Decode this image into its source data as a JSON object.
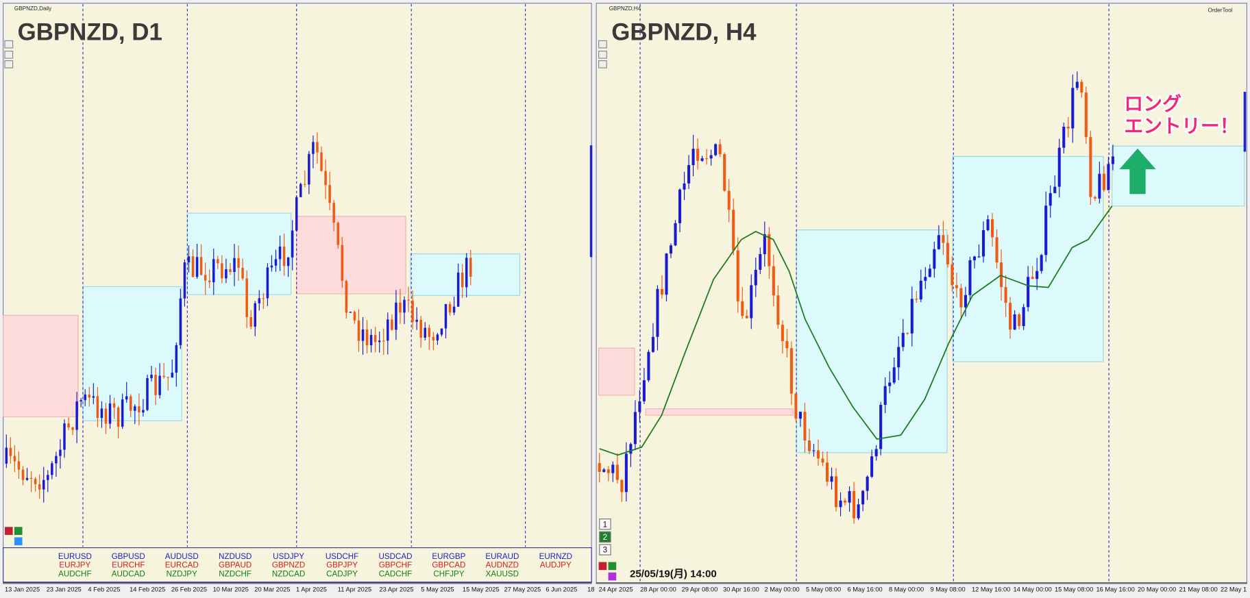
{
  "left_chart": {
    "window_title": "GBPNZD,Daily",
    "symbol_label": "GBPNZD, D1",
    "x_labels": [
      "13 Jan 2025",
      "23 Jan 2025",
      "4 Feb 2025",
      "14 Feb 2025",
      "26 Feb 2025",
      "10 Mar 2025",
      "20 Mar 2025",
      "1 Apr 2025",
      "11 Apr 2025",
      "23 Apr 2025",
      "5 May 2025",
      "15 May 2025",
      "27 May 2025",
      "6 Jun 2025",
      "18"
    ],
    "symbols": [
      [
        "EURUSD",
        "EURJPY",
        "AUDCHF"
      ],
      [
        "GBPUSD",
        "EURCHF",
        "AUDCAD"
      ],
      [
        "AUDUSD",
        "EURCAD",
        "NZDJPY"
      ],
      [
        "NZDUSD",
        "GBPAUD",
        "NZDCHF"
      ],
      [
        "USDJPY",
        "GBPNZD",
        "NZDCAD"
      ],
      [
        "USDCHF",
        "GBPJPY",
        "CADJPY"
      ],
      [
        "USDCAD",
        "GBPCHF",
        "CADCHF"
      ],
      [
        "EURGBP",
        "GBPCAD",
        "CHFJPY"
      ],
      [
        "EURAUD",
        "AUDNZD",
        "XAUUSD"
      ],
      [
        "EURNZD",
        "AUDJPY"
      ]
    ]
  },
  "right_chart": {
    "window_title": "GBPNZD,H4",
    "symbol_label": "GBPNZD, H4",
    "order_tool": "OrderTool",
    "x_labels": [
      "24 Apr 2025",
      "28 Apr 00:00",
      "29 Apr 08:00",
      "30 Apr 16:00",
      "2 May 00:00",
      "5 May 08:00",
      "6 May 16:00",
      "8 May 00:00",
      "9 May 08:00",
      "12 May 16:00",
      "14 May 00:00",
      "15 May 08:00",
      "16 May 16:00",
      "20 May 00:00",
      "21 May 08:00",
      "22 May 1"
    ],
    "timestamp": "25/05/19(月) 14:00",
    "buttons": [
      "1",
      "2",
      "3"
    ],
    "annotation": [
      "ロング",
      "エントリー！"
    ]
  }
}
